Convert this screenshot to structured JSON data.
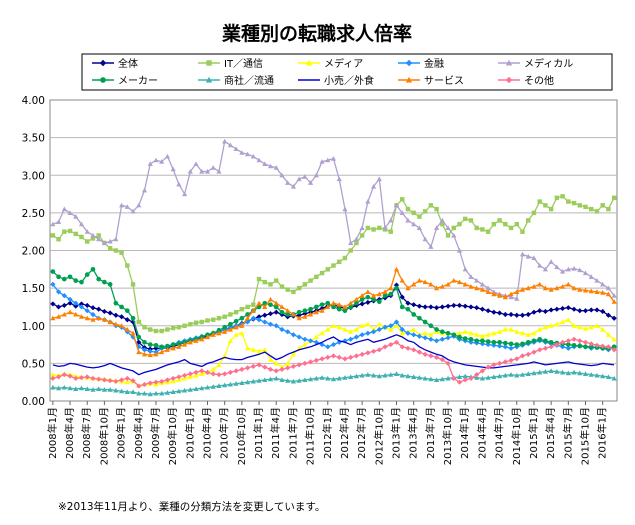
{
  "chart_data": {
    "type": "line",
    "title": "業種別の転職求人倍率",
    "note": "※2013年11月より、業種の分類方法を変更しています。",
    "xlabel": "",
    "ylabel": "",
    "ylim": [
      0,
      4
    ],
    "yticks": [
      "0.00",
      "0.50",
      "1.00",
      "1.50",
      "2.00",
      "2.50",
      "3.00",
      "3.50",
      "4.00"
    ],
    "grid": "horizontal",
    "legend_position": "top",
    "x_start": "2008-01",
    "x_months": 99,
    "x_ticks": [
      "2008年1月",
      "2008年4月",
      "2008年7月",
      "2008年10月",
      "2009年1月",
      "2009年4月",
      "2009年7月",
      "2009年10月",
      "2010年1月",
      "2010年4月",
      "2010年7月",
      "2010年10月",
      "2011年1月",
      "2011年4月",
      "2011年7月",
      "2011年10月",
      "2012年1月",
      "2012年4月",
      "2012年7月",
      "2012年10月",
      "2013年1月",
      "2013年4月",
      "2013年7月",
      "2013年10月",
      "2014年1月",
      "2014年4月",
      "2014年7月",
      "2014年10月",
      "2015年1月",
      "2015年4月",
      "2015年7月",
      "2015年10月",
      "2016年1月"
    ],
    "series": [
      {
        "name": "全体",
        "color": "#00008b",
        "marker": "diamond",
        "values": [
          1.29,
          1.25,
          1.27,
          1.3,
          1.26,
          1.29,
          1.27,
          1.24,
          1.22,
          1.19,
          1.17,
          1.14,
          1.12,
          1.08,
          1.05,
          0.78,
          0.71,
          0.69,
          0.7,
          0.7,
          0.71,
          0.73,
          0.75,
          0.78,
          0.8,
          0.82,
          0.84,
          0.86,
          0.9,
          0.92,
          0.95,
          0.97,
          1.0,
          1.03,
          1.06,
          1.09,
          1.12,
          1.14,
          1.16,
          1.18,
          1.15,
          1.12,
          1.13,
          1.14,
          1.16,
          1.18,
          1.2,
          1.23,
          1.26,
          1.28,
          1.25,
          1.23,
          1.24,
          1.27,
          1.29,
          1.31,
          1.33,
          1.35,
          1.37,
          1.4,
          1.54,
          1.38,
          1.3,
          1.28,
          1.26,
          1.25,
          1.25,
          1.24,
          1.25,
          1.26,
          1.27,
          1.27,
          1.26,
          1.25,
          1.24,
          1.22,
          1.2,
          1.18,
          1.17,
          1.15,
          1.15,
          1.14,
          1.14,
          1.15,
          1.18,
          1.2,
          1.19,
          1.21,
          1.22,
          1.23,
          1.24,
          1.22,
          1.2,
          1.2,
          1.21,
          1.21,
          1.19,
          1.14,
          1.1
        ]
      },
      {
        "name": "IT／通信",
        "color": "#9acd5a",
        "marker": "square",
        "values": [
          2.2,
          2.15,
          2.25,
          2.26,
          2.22,
          2.18,
          2.12,
          2.16,
          2.2,
          2.1,
          2.03,
          2.0,
          1.97,
          1.8,
          1.55,
          1.05,
          0.98,
          0.95,
          0.93,
          0.93,
          0.95,
          0.97,
          0.98,
          1.0,
          1.02,
          1.04,
          1.05,
          1.07,
          1.08,
          1.1,
          1.12,
          1.15,
          1.18,
          1.22,
          1.25,
          1.28,
          1.62,
          1.58,
          1.55,
          1.6,
          1.52,
          1.48,
          1.45,
          1.5,
          1.55,
          1.6,
          1.65,
          1.7,
          1.75,
          1.8,
          1.85,
          1.9,
          2.0,
          2.1,
          2.2,
          2.3,
          2.28,
          2.3,
          2.28,
          2.25,
          2.6,
          2.68,
          2.55,
          2.5,
          2.45,
          2.52,
          2.6,
          2.55,
          2.35,
          2.2,
          2.3,
          2.35,
          2.42,
          2.4,
          2.3,
          2.28,
          2.25,
          2.35,
          2.4,
          2.35,
          2.3,
          2.35,
          2.25,
          2.4,
          2.5,
          2.65,
          2.6,
          2.55,
          2.7,
          2.72,
          2.65,
          2.63,
          2.6,
          2.58,
          2.55,
          2.52,
          2.6,
          2.55,
          2.7
        ]
      },
      {
        "name": "メディア",
        "color": "#ffff00",
        "marker": "triangle",
        "values": [
          0.35,
          0.34,
          0.36,
          0.35,
          0.33,
          0.32,
          0.31,
          0.3,
          0.3,
          0.29,
          0.28,
          0.27,
          0.26,
          0.25,
          0.26,
          0.2,
          0.22,
          0.23,
          0.22,
          0.24,
          0.25,
          0.26,
          0.28,
          0.3,
          0.32,
          0.34,
          0.36,
          0.38,
          0.42,
          0.48,
          0.6,
          0.8,
          0.88,
          0.9,
          0.7,
          0.68,
          0.66,
          0.68,
          0.55,
          0.5,
          0.45,
          0.5,
          0.62,
          0.7,
          0.75,
          0.8,
          0.85,
          0.9,
          0.95,
          1.0,
          0.98,
          0.95,
          0.92,
          0.95,
          1.0,
          1.02,
          0.95,
          1.02,
          0.98,
          0.95,
          1.0,
          0.9,
          0.92,
          0.95,
          0.88,
          0.9,
          0.88,
          0.92,
          0.9,
          0.9,
          0.88,
          0.9,
          0.92,
          0.9,
          0.88,
          0.86,
          0.88,
          0.9,
          0.92,
          0.95,
          0.95,
          0.92,
          0.9,
          0.88,
          0.9,
          0.95,
          0.98,
          1.0,
          1.02,
          1.05,
          1.08,
          1.0,
          0.98,
          0.96,
          0.98,
          1.0,
          0.95,
          0.88,
          0.82
        ]
      },
      {
        "name": "金融",
        "color": "#1e90ff",
        "marker": "diamond",
        "values": [
          1.55,
          1.45,
          1.4,
          1.35,
          1.3,
          1.25,
          1.2,
          1.15,
          1.1,
          1.08,
          1.05,
          1.0,
          0.98,
          0.92,
          0.85,
          0.72,
          0.68,
          0.66,
          0.65,
          0.7,
          0.72,
          0.75,
          0.78,
          0.8,
          0.82,
          0.84,
          0.86,
          0.88,
          0.9,
          0.92,
          0.95,
          0.98,
          1.0,
          1.02,
          1.05,
          1.1,
          1.08,
          1.05,
          1.02,
          1.0,
          0.95,
          0.92,
          0.88,
          0.85,
          0.82,
          0.8,
          0.78,
          0.75,
          0.72,
          0.75,
          0.78,
          0.8,
          0.82,
          0.85,
          0.88,
          0.9,
          0.92,
          0.95,
          0.98,
          1.0,
          1.05,
          0.95,
          0.9,
          0.88,
          0.86,
          0.84,
          0.82,
          0.8,
          0.82,
          0.84,
          0.86,
          0.82,
          0.8,
          0.78,
          0.77,
          0.76,
          0.75,
          0.74,
          0.73,
          0.72,
          0.7,
          0.72,
          0.74,
          0.76,
          0.78,
          0.8,
          0.78,
          0.76,
          0.74,
          0.72,
          0.7,
          0.72,
          0.74,
          0.72,
          0.7,
          0.72,
          0.7,
          0.68,
          0.72
        ]
      },
      {
        "name": "メディカル",
        "color": "#b0a0d0",
        "marker": "triangle",
        "values": [
          2.35,
          2.38,
          2.55,
          2.5,
          2.45,
          2.35,
          2.25,
          2.2,
          2.15,
          2.1,
          2.12,
          2.15,
          2.6,
          2.58,
          2.52,
          2.6,
          2.8,
          3.15,
          3.2,
          3.18,
          3.25,
          3.08,
          2.88,
          2.75,
          3.05,
          3.15,
          3.05,
          3.05,
          3.1,
          3.05,
          3.45,
          3.4,
          3.35,
          3.3,
          3.28,
          3.25,
          3.2,
          3.15,
          3.12,
          3.1,
          3.0,
          2.9,
          2.85,
          2.95,
          2.98,
          2.9,
          3.0,
          3.18,
          3.2,
          3.22,
          2.95,
          2.55,
          2.1,
          2.15,
          2.3,
          2.65,
          2.85,
          2.95,
          2.3,
          2.4,
          2.6,
          2.5,
          2.4,
          2.35,
          2.3,
          2.15,
          2.05,
          2.3,
          2.4,
          2.3,
          2.2,
          2.0,
          1.75,
          1.65,
          1.6,
          1.55,
          1.5,
          1.45,
          1.42,
          1.4,
          1.38,
          1.36,
          1.95,
          1.92,
          1.9,
          1.8,
          1.75,
          1.85,
          1.78,
          1.72,
          1.75,
          1.76,
          1.74,
          1.7,
          1.65,
          1.6,
          1.55,
          1.5,
          1.4
        ]
      },
      {
        "name": "メーカー",
        "color": "#00a050",
        "marker": "circle",
        "values": [
          1.72,
          1.65,
          1.62,
          1.65,
          1.6,
          1.58,
          1.68,
          1.75,
          1.62,
          1.58,
          1.55,
          1.3,
          1.25,
          1.2,
          1.1,
          0.85,
          0.78,
          0.75,
          0.74,
          0.72,
          0.73,
          0.75,
          0.76,
          0.78,
          0.8,
          0.82,
          0.85,
          0.88,
          0.9,
          0.94,
          0.98,
          1.02,
          1.06,
          1.1,
          1.15,
          1.2,
          1.25,
          1.3,
          1.28,
          1.25,
          1.18,
          1.15,
          1.15,
          1.18,
          1.2,
          1.22,
          1.25,
          1.28,
          1.3,
          1.25,
          1.22,
          1.2,
          1.25,
          1.3,
          1.35,
          1.38,
          1.35,
          1.32,
          1.4,
          1.42,
          1.5,
          1.25,
          1.22,
          1.15,
          1.1,
          1.05,
          1.0,
          0.95,
          0.92,
          0.9,
          0.88,
          0.85,
          0.83,
          0.82,
          0.8,
          0.8,
          0.79,
          0.78,
          0.78,
          0.77,
          0.76,
          0.75,
          0.76,
          0.78,
          0.8,
          0.82,
          0.8,
          0.78,
          0.77,
          0.76,
          0.75,
          0.74,
          0.73,
          0.72,
          0.72,
          0.71,
          0.7,
          0.7,
          0.72
        ]
      },
      {
        "name": "商社／流通",
        "color": "#40b0b0",
        "marker": "triangle",
        "values": [
          0.18,
          0.17,
          0.18,
          0.17,
          0.16,
          0.17,
          0.16,
          0.15,
          0.16,
          0.15,
          0.15,
          0.14,
          0.13,
          0.12,
          0.12,
          0.1,
          0.1,
          0.09,
          0.1,
          0.1,
          0.11,
          0.12,
          0.13,
          0.14,
          0.15,
          0.16,
          0.17,
          0.18,
          0.19,
          0.2,
          0.21,
          0.22,
          0.23,
          0.24,
          0.25,
          0.26,
          0.27,
          0.28,
          0.29,
          0.3,
          0.28,
          0.27,
          0.26,
          0.27,
          0.28,
          0.29,
          0.3,
          0.31,
          0.3,
          0.29,
          0.3,
          0.31,
          0.32,
          0.33,
          0.34,
          0.35,
          0.34,
          0.33,
          0.34,
          0.35,
          0.36,
          0.34,
          0.33,
          0.32,
          0.31,
          0.3,
          0.29,
          0.28,
          0.29,
          0.3,
          0.31,
          0.32,
          0.33,
          0.32,
          0.31,
          0.3,
          0.31,
          0.32,
          0.33,
          0.34,
          0.35,
          0.34,
          0.35,
          0.36,
          0.37,
          0.38,
          0.39,
          0.4,
          0.39,
          0.38,
          0.37,
          0.38,
          0.37,
          0.36,
          0.35,
          0.34,
          0.33,
          0.32,
          0.3
        ]
      },
      {
        "name": "小売／外食",
        "color": "#0000cc",
        "marker": "line",
        "values": [
          0.48,
          0.46,
          0.47,
          0.5,
          0.49,
          0.47,
          0.45,
          0.44,
          0.45,
          0.47,
          0.5,
          0.47,
          0.44,
          0.42,
          0.4,
          0.35,
          0.38,
          0.4,
          0.42,
          0.45,
          0.48,
          0.5,
          0.52,
          0.55,
          0.5,
          0.48,
          0.46,
          0.5,
          0.52,
          0.55,
          0.58,
          0.56,
          0.55,
          0.55,
          0.58,
          0.6,
          0.62,
          0.65,
          0.6,
          0.55,
          0.58,
          0.62,
          0.65,
          0.68,
          0.7,
          0.72,
          0.75,
          0.78,
          0.82,
          0.85,
          0.8,
          0.78,
          0.75,
          0.78,
          0.8,
          0.82,
          0.78,
          0.8,
          0.82,
          0.85,
          0.88,
          0.85,
          0.8,
          0.78,
          0.72,
          0.68,
          0.65,
          0.62,
          0.6,
          0.55,
          0.52,
          0.5,
          0.48,
          0.47,
          0.46,
          0.45,
          0.44,
          0.44,
          0.45,
          0.46,
          0.47,
          0.48,
          0.49,
          0.5,
          0.52,
          0.5,
          0.48,
          0.49,
          0.5,
          0.51,
          0.52,
          0.5,
          0.49,
          0.48,
          0.47,
          0.48,
          0.5,
          0.49,
          0.48
        ]
      },
      {
        "name": "サービス",
        "color": "#ff7f00",
        "marker": "triangle",
        "values": [
          1.1,
          1.12,
          1.15,
          1.18,
          1.15,
          1.12,
          1.1,
          1.08,
          1.1,
          1.08,
          1.05,
          1.02,
          1.0,
          0.95,
          0.9,
          0.65,
          0.62,
          0.61,
          0.62,
          0.65,
          0.68,
          0.7,
          0.72,
          0.75,
          0.78,
          0.8,
          0.82,
          0.85,
          0.88,
          0.9,
          0.92,
          0.95,
          0.98,
          1.0,
          1.1,
          1.2,
          1.3,
          1.25,
          1.35,
          1.3,
          1.25,
          1.2,
          1.15,
          1.1,
          1.12,
          1.15,
          1.18,
          1.2,
          1.25,
          1.3,
          1.28,
          1.25,
          1.3,
          1.35,
          1.4,
          1.45,
          1.4,
          1.42,
          1.45,
          1.5,
          1.75,
          1.6,
          1.5,
          1.55,
          1.6,
          1.58,
          1.55,
          1.5,
          1.52,
          1.55,
          1.6,
          1.58,
          1.55,
          1.52,
          1.5,
          1.48,
          1.45,
          1.42,
          1.4,
          1.38,
          1.42,
          1.45,
          1.48,
          1.5,
          1.52,
          1.55,
          1.5,
          1.48,
          1.5,
          1.52,
          1.55,
          1.5,
          1.48,
          1.47,
          1.46,
          1.45,
          1.44,
          1.42,
          1.32
        ]
      },
      {
        "name": "その他",
        "color": "#ff7090",
        "marker": "diamond",
        "values": [
          0.3,
          0.32,
          0.35,
          0.33,
          0.3,
          0.31,
          0.32,
          0.3,
          0.29,
          0.28,
          0.27,
          0.26,
          0.28,
          0.3,
          0.27,
          0.2,
          0.22,
          0.24,
          0.25,
          0.26,
          0.28,
          0.3,
          0.32,
          0.34,
          0.36,
          0.38,
          0.4,
          0.38,
          0.36,
          0.35,
          0.36,
          0.38,
          0.4,
          0.42,
          0.44,
          0.46,
          0.48,
          0.45,
          0.42,
          0.4,
          0.42,
          0.44,
          0.46,
          0.48,
          0.5,
          0.52,
          0.54,
          0.56,
          0.58,
          0.6,
          0.58,
          0.56,
          0.58,
          0.6,
          0.62,
          0.64,
          0.66,
          0.68,
          0.72,
          0.75,
          0.78,
          0.72,
          0.7,
          0.68,
          0.65,
          0.62,
          0.6,
          0.58,
          0.55,
          0.5,
          0.3,
          0.25,
          0.28,
          0.3,
          0.35,
          0.4,
          0.45,
          0.48,
          0.5,
          0.52,
          0.54,
          0.56,
          0.6,
          0.62,
          0.65,
          0.68,
          0.7,
          0.72,
          0.75,
          0.78,
          0.8,
          0.82,
          0.8,
          0.78,
          0.76,
          0.74,
          0.73,
          0.72,
          0.68
        ]
      }
    ]
  }
}
